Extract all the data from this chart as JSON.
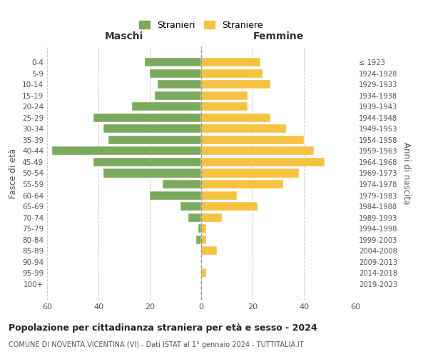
{
  "age_groups": [
    "0-4",
    "5-9",
    "10-14",
    "15-19",
    "20-24",
    "25-29",
    "30-34",
    "35-39",
    "40-44",
    "45-49",
    "50-54",
    "55-59",
    "60-64",
    "65-69",
    "70-74",
    "75-79",
    "80-84",
    "85-89",
    "90-94",
    "95-99",
    "100+"
  ],
  "anni_nascita": [
    "2019-2023",
    "2014-2018",
    "2009-2013",
    "2004-2008",
    "1999-2003",
    "1994-1998",
    "1989-1993",
    "1984-1988",
    "1979-1983",
    "1974-1978",
    "1969-1973",
    "1964-1968",
    "1959-1963",
    "1954-1958",
    "1949-1953",
    "1944-1948",
    "1939-1943",
    "1934-1938",
    "1929-1933",
    "1924-1928",
    "≤ 1923"
  ],
  "maschi": [
    22,
    20,
    17,
    18,
    27,
    42,
    38,
    36,
    58,
    42,
    38,
    15,
    20,
    8,
    5,
    1,
    2,
    0,
    0,
    0,
    0
  ],
  "femmine": [
    23,
    24,
    27,
    18,
    18,
    27,
    33,
    40,
    44,
    48,
    38,
    32,
    14,
    22,
    8,
    2,
    2,
    6,
    0,
    2,
    0
  ],
  "color_maschi": "#7aaa5d",
  "color_femmine": "#f5c242",
  "title": "Popolazione per cittadinanza straniera per età e sesso - 2024",
  "subtitle": "COMUNE DI NOVENTA VICENTINA (VI) - Dati ISTAT al 1° gennaio 2024 - TUTTITALIA.IT",
  "xlabel_left": "Maschi",
  "xlabel_right": "Femmine",
  "ylabel_left": "Fasce di età",
  "ylabel_right": "Anni di nascita",
  "xlim": 60,
  "legend_stranieri": "Stranieri",
  "legend_straniere": "Straniere",
  "background_color": "#ffffff"
}
